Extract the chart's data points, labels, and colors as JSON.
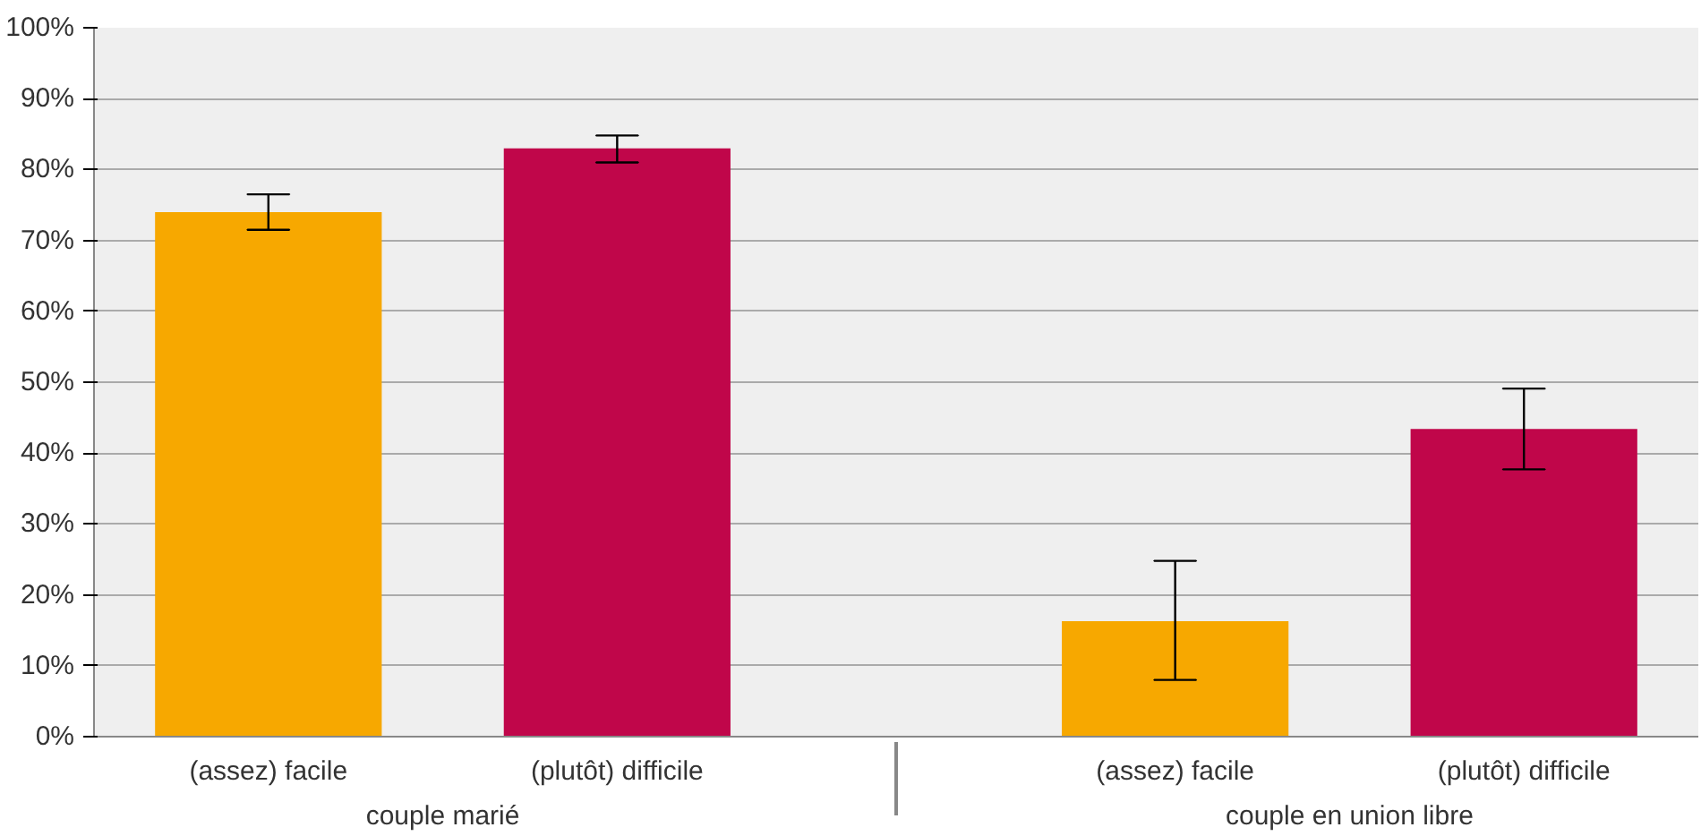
{
  "chart_data": {
    "type": "bar",
    "categories": [
      "couple marié",
      "couple en union libre"
    ],
    "series": [
      {
        "name": "(assez) facile",
        "color": "#f7a800",
        "values": [
          74,
          16.3
        ],
        "errors": [
          [
            71.5,
            76.5
          ],
          [
            8,
            24.8
          ]
        ]
      },
      {
        "name": "(plutôt) difficile",
        "color": "#c0064a",
        "values": [
          83,
          43.4
        ],
        "errors": [
          [
            81,
            84.8
          ],
          [
            37.7,
            49.1
          ]
        ]
      }
    ],
    "ylim": [
      0,
      100
    ],
    "yticks": [
      {
        "value": 0,
        "label": "0%"
      },
      {
        "value": 10,
        "label": "10%"
      },
      {
        "value": 20,
        "label": "20%"
      },
      {
        "value": 30,
        "label": "30%"
      },
      {
        "value": 40,
        "label": "40%"
      },
      {
        "value": 50,
        "label": "50%"
      },
      {
        "value": 60,
        "label": "60%"
      },
      {
        "value": 70,
        "label": "70%"
      },
      {
        "value": 80,
        "label": "80%"
      },
      {
        "value": 90,
        "label": "90%"
      },
      {
        "value": 100,
        "label": "100%"
      }
    ],
    "grid": "y",
    "legend": false
  }
}
